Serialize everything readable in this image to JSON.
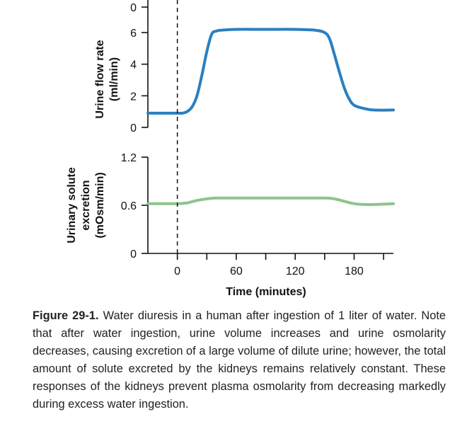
{
  "chart_data": [
    {
      "type": "line",
      "ylabel": [
        "Urine flow rate",
        "(ml/min)"
      ],
      "ylim": [
        0,
        6
      ],
      "yticks": [
        0,
        2,
        4,
        6
      ],
      "top_tick_label": "0",
      "xlim": [
        -30,
        220
      ],
      "series": [
        {
          "color": "#2a7fc0",
          "x": [
            -30,
            0,
            5,
            10,
            15,
            20,
            25,
            30,
            35,
            40,
            45,
            60,
            90,
            120,
            140,
            150,
            155,
            160,
            165,
            170,
            175,
            180,
            190,
            200,
            220
          ],
          "y": [
            0.9,
            0.9,
            0.9,
            1.0,
            1.3,
            2.0,
            3.3,
            4.8,
            5.9,
            6.1,
            6.15,
            6.2,
            6.2,
            6.2,
            6.15,
            6.0,
            5.6,
            4.6,
            3.5,
            2.5,
            1.8,
            1.4,
            1.2,
            1.1,
            1.1
          ]
        }
      ]
    },
    {
      "type": "line",
      "ylabel": [
        "Urinary solute",
        "excretion",
        "(mOsm/min)"
      ],
      "ylim": [
        0,
        1.2
      ],
      "yticks": [
        0,
        0.6,
        1.2
      ],
      "ytick_labels": [
        "0",
        "0.6",
        "1.2"
      ],
      "xlabel": "Time (minutes)",
      "xlim": [
        -30,
        220
      ],
      "xticks": [
        0,
        60,
        120,
        180
      ],
      "series": [
        {
          "color": "#8cc48c",
          "x": [
            -30,
            0,
            10,
            20,
            30,
            40,
            60,
            90,
            120,
            150,
            160,
            170,
            180,
            190,
            200,
            220
          ],
          "y": [
            0.62,
            0.62,
            0.63,
            0.66,
            0.68,
            0.69,
            0.69,
            0.69,
            0.69,
            0.69,
            0.68,
            0.65,
            0.62,
            0.61,
            0.61,
            0.62
          ]
        }
      ]
    }
  ],
  "caption": {
    "label": "Figure 29-1.",
    "text": "Water diuresis in a human after ingestion of 1 liter of water. Note that after water ingestion, urine volume increases and urine osmolarity decreases, causing excretion of a large volume of dilute urine; however, the total amount of solute excreted by the kidneys remains relatively constant. These responses of the kidneys prevent plasma osmolarity from decreasing markedly during excess water ingestion."
  }
}
